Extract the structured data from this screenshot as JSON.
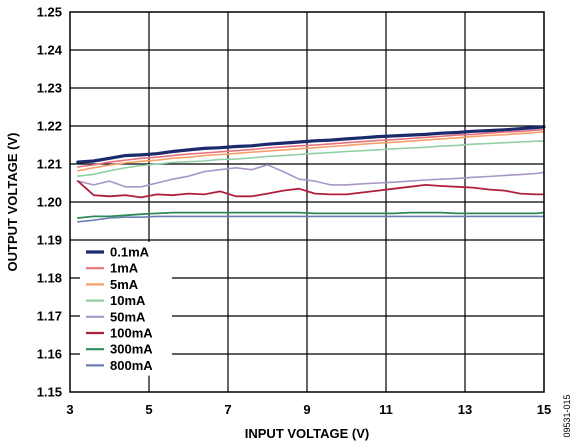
{
  "chart_data": {
    "type": "line",
    "xlabel": "INPUT VOLTAGE (V)",
    "ylabel": "OUTPUT VOLTAGE (V)",
    "xlim": [
      3,
      15
    ],
    "ylim": [
      1.15,
      1.25
    ],
    "xticks": [
      3,
      5,
      7,
      9,
      11,
      13,
      15
    ],
    "yticks": [
      1.15,
      1.16,
      1.17,
      1.18,
      1.19,
      1.2,
      1.21,
      1.22,
      1.23,
      1.24,
      1.25
    ],
    "xtick_labels": [
      "3",
      "5",
      "7",
      "9",
      "11",
      "13",
      "15"
    ],
    "ytick_labels": [
      "1.15",
      "1.16",
      "1.17",
      "1.18",
      "1.19",
      "1.20",
      "1.21",
      "1.22",
      "1.23",
      "1.24",
      "1.25"
    ],
    "grid": true,
    "legend_position": "bottom-left",
    "x": [
      3.2,
      3.6,
      4.0,
      4.4,
      4.8,
      5.2,
      5.6,
      6.0,
      6.4,
      6.8,
      7.2,
      7.6,
      8.0,
      8.4,
      8.8,
      9.2,
      9.6,
      10.0,
      10.4,
      10.8,
      11.2,
      11.6,
      12.0,
      12.4,
      12.8,
      13.2,
      13.6,
      14.0,
      14.4,
      14.8,
      15.0
    ],
    "series": [
      {
        "name": "0.1mA",
        "color": "#1a2a6c",
        "width": 3.2,
        "values": [
          1.2105,
          1.2108,
          1.2115,
          1.2122,
          1.2124,
          1.2127,
          1.2133,
          1.2137,
          1.2141,
          1.2143,
          1.2146,
          1.2148,
          1.2152,
          1.2155,
          1.2158,
          1.2161,
          1.2163,
          1.2166,
          1.2169,
          1.2172,
          1.2174,
          1.2176,
          1.2178,
          1.2181,
          1.2183,
          1.2186,
          1.2188,
          1.219,
          1.2193,
          1.2196,
          1.2198
        ]
      },
      {
        "name": "1mA",
        "color": "#e8707e",
        "width": 1.6,
        "values": [
          1.2092,
          1.2098,
          1.2105,
          1.211,
          1.2115,
          1.2118,
          1.2122,
          1.2126,
          1.2129,
          1.2132,
          1.2135,
          1.2138,
          1.2142,
          1.2145,
          1.2148,
          1.215,
          1.2153,
          1.2156,
          1.2159,
          1.2162,
          1.2164,
          1.2167,
          1.217,
          1.2173,
          1.2176,
          1.2178,
          1.2181,
          1.2184,
          1.2186,
          1.2189,
          1.2191
        ]
      },
      {
        "name": "5mA",
        "color": "#f5a06a",
        "width": 1.6,
        "values": [
          1.2082,
          1.209,
          1.2097,
          1.2103,
          1.2107,
          1.211,
          1.2115,
          1.2118,
          1.2122,
          1.2125,
          1.2128,
          1.2131,
          1.2134,
          1.2137,
          1.214,
          1.2143,
          1.2146,
          1.2149,
          1.2152,
          1.2155,
          1.2157,
          1.216,
          1.2163,
          1.2166,
          1.2169,
          1.2172,
          1.2175,
          1.2177,
          1.218,
          1.2183,
          1.2185
        ]
      },
      {
        "name": "10mA",
        "color": "#92cfa6",
        "width": 1.6,
        "values": [
          1.2068,
          1.2073,
          1.2082,
          1.209,
          1.2096,
          1.21,
          1.2104,
          1.2106,
          1.2108,
          1.2112,
          1.2113,
          1.2116,
          1.212,
          1.2122,
          1.2125,
          1.2128,
          1.213,
          1.2133,
          1.2135,
          1.2137,
          1.214,
          1.2142,
          1.2144,
          1.2147,
          1.2149,
          1.2152,
          1.2154,
          1.2156,
          1.2158,
          1.216,
          1.216
        ]
      },
      {
        "name": "50mA",
        "color": "#a896c8",
        "width": 1.6,
        "values": [
          1.2055,
          1.2045,
          1.2055,
          1.204,
          1.204,
          1.205,
          1.206,
          1.2068,
          1.208,
          1.2085,
          1.209,
          1.2085,
          1.2098,
          1.208,
          1.206,
          1.2055,
          1.2045,
          1.2045,
          1.2048,
          1.205,
          1.2052,
          1.2055,
          1.2058,
          1.206,
          1.2062,
          1.2065,
          1.2067,
          1.207,
          1.2072,
          1.2075,
          1.2078
        ]
      },
      {
        "name": "100mA",
        "color": "#b0203c",
        "width": 1.8,
        "values": [
          1.2055,
          1.2018,
          1.2015,
          1.2018,
          1.2012,
          1.202,
          1.2018,
          1.2022,
          1.202,
          1.2028,
          1.2015,
          1.2015,
          1.2022,
          1.203,
          1.2035,
          1.2022,
          1.202,
          1.202,
          1.2025,
          1.203,
          1.2035,
          1.204,
          1.2045,
          1.2042,
          1.204,
          1.2038,
          1.2033,
          1.203,
          1.2022,
          1.202,
          1.202
        ]
      },
      {
        "name": "300mA",
        "color": "#2e8b57",
        "width": 1.8,
        "values": [
          1.1958,
          1.1962,
          1.1962,
          1.1965,
          1.1968,
          1.197,
          1.1972,
          1.1972,
          1.1972,
          1.1972,
          1.1972,
          1.1972,
          1.1972,
          1.1972,
          1.1972,
          1.197,
          1.197,
          1.197,
          1.197,
          1.197,
          1.197,
          1.1972,
          1.1972,
          1.1972,
          1.197,
          1.197,
          1.197,
          1.197,
          1.197,
          1.197,
          1.1972
        ]
      },
      {
        "name": "800mA",
        "color": "#6a7fb0",
        "width": 1.6,
        "values": [
          1.1948,
          1.1952,
          1.1958,
          1.196,
          1.196,
          1.1962,
          1.1962,
          1.1962,
          1.1962,
          1.1962,
          1.1962,
          1.1962,
          1.1962,
          1.1962,
          1.1962,
          1.1962,
          1.1962,
          1.1962,
          1.1962,
          1.1962,
          1.1962,
          1.1962,
          1.1962,
          1.1962,
          1.1962,
          1.1962,
          1.1962,
          1.1962,
          1.1962,
          1.1962,
          1.1962
        ]
      }
    ]
  },
  "figure_code": "09531-015"
}
